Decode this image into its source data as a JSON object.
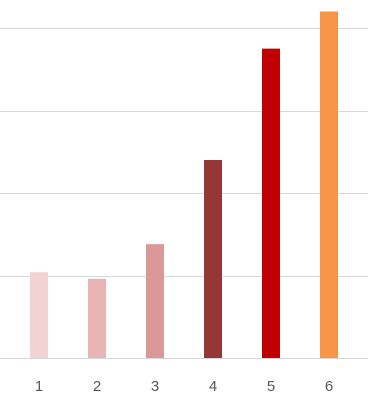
{
  "chart_data": {
    "type": "bar",
    "categories": [
      "1",
      "2",
      "3",
      "4",
      "5",
      "6"
    ],
    "values": [
      1.04,
      0.96,
      1.38,
      2.4,
      3.75,
      4.2
    ],
    "colors": [
      "#f2d2d2",
      "#e8b4b4",
      "#db9898",
      "#953737",
      "#c00000",
      "#f79646"
    ],
    "ylim": [
      0,
      4.2
    ],
    "gridlines": [
      0,
      1,
      2,
      3,
      4
    ],
    "grid": true,
    "legend": "none",
    "title": "",
    "xlabel": "",
    "ylabel": ""
  }
}
